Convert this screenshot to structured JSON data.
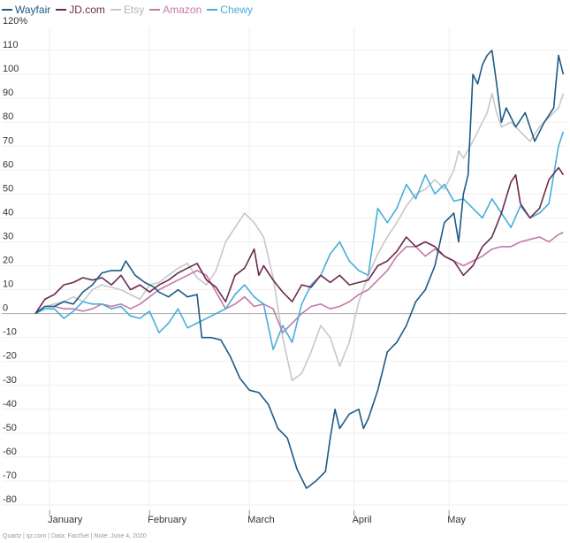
{
  "chart_data": {
    "type": "line",
    "title": "",
    "xlabel": "",
    "ylabel": "",
    "ylim": [
      -80,
      120
    ],
    "yticks": [
      -80,
      -70,
      -60,
      -50,
      -40,
      -30,
      -20,
      -10,
      0,
      10,
      20,
      30,
      40,
      50,
      60,
      70,
      80,
      90,
      100,
      110
    ],
    "top_tick_label": "120%",
    "xlim": [
      0,
      110
    ],
    "month_ticks": [
      {
        "label": "January",
        "day": 3
      },
      {
        "label": "February",
        "day": 24
      },
      {
        "label": "March",
        "day": 45
      },
      {
        "label": "April",
        "day": 67
      },
      {
        "label": "May",
        "day": 87
      }
    ],
    "series": [
      {
        "name": "Wayfair",
        "color": "#1d5a85",
        "values": [
          [
            0,
            0
          ],
          [
            2,
            3
          ],
          [
            4,
            3
          ],
          [
            6,
            5
          ],
          [
            8,
            4
          ],
          [
            10,
            9
          ],
          [
            12,
            12
          ],
          [
            14,
            17
          ],
          [
            16,
            18
          ],
          [
            18,
            18
          ],
          [
            19,
            22
          ],
          [
            21,
            16
          ],
          [
            23,
            13
          ],
          [
            25,
            11
          ],
          [
            26,
            9
          ],
          [
            28,
            7
          ],
          [
            30,
            10
          ],
          [
            32,
            7
          ],
          [
            34,
            8
          ],
          [
            35,
            -10
          ],
          [
            37,
            -10
          ],
          [
            39,
            -11
          ],
          [
            41,
            -18
          ],
          [
            43,
            -27
          ],
          [
            45,
            -32
          ],
          [
            47,
            -33
          ],
          [
            49,
            -38
          ],
          [
            51,
            -48
          ],
          [
            53,
            -52
          ],
          [
            55,
            -65
          ],
          [
            57,
            -73
          ],
          [
            59,
            -70
          ],
          [
            61,
            -66
          ],
          [
            62,
            -52
          ],
          [
            63,
            -40
          ],
          [
            64,
            -48
          ],
          [
            66,
            -42
          ],
          [
            68,
            -40
          ],
          [
            69,
            -48
          ],
          [
            70,
            -44
          ],
          [
            72,
            -32
          ],
          [
            74,
            -16
          ],
          [
            76,
            -12
          ],
          [
            78,
            -5
          ],
          [
            80,
            5
          ],
          [
            82,
            10
          ],
          [
            84,
            20
          ],
          [
            86,
            38
          ],
          [
            88,
            42
          ],
          [
            89,
            30
          ],
          [
            90,
            50
          ],
          [
            91,
            58
          ],
          [
            92,
            100
          ],
          [
            93,
            96
          ],
          [
            94,
            104
          ],
          [
            95,
            108
          ],
          [
            96,
            110
          ],
          [
            97,
            96
          ],
          [
            98,
            80
          ],
          [
            99,
            86
          ],
          [
            101,
            78
          ],
          [
            103,
            84
          ],
          [
            105,
            72
          ],
          [
            107,
            80
          ],
          [
            109,
            86
          ],
          [
            110,
            108
          ],
          [
            111,
            100
          ]
        ]
      },
      {
        "name": "JD.com",
        "color": "#6b2a4e",
        "values": [
          [
            0,
            0
          ],
          [
            2,
            6
          ],
          [
            4,
            8
          ],
          [
            6,
            12
          ],
          [
            8,
            13
          ],
          [
            10,
            15
          ],
          [
            12,
            14
          ],
          [
            14,
            15
          ],
          [
            16,
            12
          ],
          [
            18,
            16
          ],
          [
            20,
            10
          ],
          [
            22,
            12
          ],
          [
            24,
            9
          ],
          [
            26,
            12
          ],
          [
            28,
            14
          ],
          [
            30,
            17
          ],
          [
            32,
            19
          ],
          [
            34,
            21
          ],
          [
            36,
            14
          ],
          [
            38,
            11
          ],
          [
            40,
            5
          ],
          [
            42,
            16
          ],
          [
            44,
            19
          ],
          [
            46,
            27
          ],
          [
            47,
            16
          ],
          [
            48,
            20
          ],
          [
            50,
            14
          ],
          [
            52,
            9
          ],
          [
            54,
            5
          ],
          [
            56,
            12
          ],
          [
            58,
            11
          ],
          [
            60,
            16
          ],
          [
            62,
            13
          ],
          [
            64,
            16
          ],
          [
            66,
            12
          ],
          [
            68,
            13
          ],
          [
            70,
            14
          ],
          [
            72,
            20
          ],
          [
            74,
            22
          ],
          [
            76,
            26
          ],
          [
            78,
            32
          ],
          [
            80,
            28
          ],
          [
            82,
            30
          ],
          [
            84,
            28
          ],
          [
            86,
            24
          ],
          [
            88,
            22
          ],
          [
            90,
            16
          ],
          [
            92,
            20
          ],
          [
            94,
            28
          ],
          [
            96,
            32
          ],
          [
            98,
            42
          ],
          [
            100,
            55
          ],
          [
            101,
            58
          ],
          [
            102,
            46
          ],
          [
            104,
            40
          ],
          [
            106,
            44
          ],
          [
            108,
            56
          ],
          [
            110,
            61
          ],
          [
            111,
            58
          ]
        ]
      },
      {
        "name": "Etsy",
        "color": "#c8c8c8",
        "values": [
          [
            0,
            0
          ],
          [
            2,
            3
          ],
          [
            4,
            4
          ],
          [
            6,
            5
          ],
          [
            8,
            7
          ],
          [
            10,
            5
          ],
          [
            12,
            10
          ],
          [
            14,
            12
          ],
          [
            16,
            11
          ],
          [
            18,
            10
          ],
          [
            20,
            8
          ],
          [
            22,
            6
          ],
          [
            24,
            12
          ],
          [
            26,
            13
          ],
          [
            28,
            16
          ],
          [
            30,
            19
          ],
          [
            32,
            21
          ],
          [
            34,
            15
          ],
          [
            36,
            12
          ],
          [
            38,
            18
          ],
          [
            40,
            30
          ],
          [
            42,
            36
          ],
          [
            44,
            42
          ],
          [
            46,
            38
          ],
          [
            48,
            32
          ],
          [
            50,
            15
          ],
          [
            52,
            -10
          ],
          [
            54,
            -28
          ],
          [
            56,
            -25
          ],
          [
            58,
            -16
          ],
          [
            60,
            -5
          ],
          [
            62,
            -10
          ],
          [
            64,
            -22
          ],
          [
            66,
            -12
          ],
          [
            68,
            5
          ],
          [
            70,
            16
          ],
          [
            72,
            25
          ],
          [
            74,
            32
          ],
          [
            76,
            38
          ],
          [
            78,
            45
          ],
          [
            80,
            50
          ],
          [
            82,
            52
          ],
          [
            84,
            56
          ],
          [
            86,
            52
          ],
          [
            88,
            60
          ],
          [
            89,
            68
          ],
          [
            90,
            65
          ],
          [
            92,
            72
          ],
          [
            94,
            80
          ],
          [
            95,
            84
          ],
          [
            96,
            92
          ],
          [
            97,
            84
          ],
          [
            98,
            78
          ],
          [
            100,
            80
          ],
          [
            102,
            76
          ],
          [
            104,
            72
          ],
          [
            106,
            78
          ],
          [
            108,
            82
          ],
          [
            110,
            86
          ],
          [
            111,
            92
          ]
        ]
      },
      {
        "name": "Amazon",
        "color": "#c47aa8",
        "values": [
          [
            0,
            0
          ],
          [
            2,
            3
          ],
          [
            4,
            3
          ],
          [
            6,
            2
          ],
          [
            8,
            2
          ],
          [
            10,
            1
          ],
          [
            12,
            2
          ],
          [
            14,
            4
          ],
          [
            16,
            3
          ],
          [
            18,
            4
          ],
          [
            20,
            2
          ],
          [
            22,
            4
          ],
          [
            24,
            7
          ],
          [
            26,
            10
          ],
          [
            28,
            12
          ],
          [
            30,
            14
          ],
          [
            32,
            16
          ],
          [
            34,
            18
          ],
          [
            36,
            16
          ],
          [
            38,
            9
          ],
          [
            40,
            2
          ],
          [
            42,
            4
          ],
          [
            44,
            7
          ],
          [
            46,
            3
          ],
          [
            48,
            4
          ],
          [
            50,
            2
          ],
          [
            52,
            -8
          ],
          [
            54,
            -4
          ],
          [
            56,
            0
          ],
          [
            58,
            3
          ],
          [
            60,
            4
          ],
          [
            62,
            2
          ],
          [
            64,
            3
          ],
          [
            66,
            5
          ],
          [
            68,
            8
          ],
          [
            70,
            10
          ],
          [
            72,
            14
          ],
          [
            74,
            18
          ],
          [
            76,
            24
          ],
          [
            78,
            28
          ],
          [
            80,
            28
          ],
          [
            82,
            24
          ],
          [
            84,
            27
          ],
          [
            86,
            24
          ],
          [
            88,
            22
          ],
          [
            90,
            20
          ],
          [
            92,
            22
          ],
          [
            94,
            24
          ],
          [
            96,
            27
          ],
          [
            98,
            28
          ],
          [
            100,
            28
          ],
          [
            102,
            30
          ],
          [
            104,
            31
          ],
          [
            106,
            32
          ],
          [
            108,
            30
          ],
          [
            110,
            33
          ],
          [
            111,
            34
          ]
        ]
      },
      {
        "name": "Chewy",
        "color": "#46aedb",
        "values": [
          [
            0,
            0
          ],
          [
            2,
            2
          ],
          [
            4,
            2
          ],
          [
            6,
            -2
          ],
          [
            8,
            1
          ],
          [
            10,
            5
          ],
          [
            12,
            4
          ],
          [
            14,
            4
          ],
          [
            16,
            2
          ],
          [
            18,
            3
          ],
          [
            20,
            -1
          ],
          [
            22,
            -2
          ],
          [
            24,
            1
          ],
          [
            26,
            -8
          ],
          [
            28,
            -4
          ],
          [
            30,
            2
          ],
          [
            32,
            -6
          ],
          [
            34,
            -4
          ],
          [
            36,
            -2
          ],
          [
            38,
            0
          ],
          [
            40,
            2
          ],
          [
            42,
            8
          ],
          [
            44,
            12
          ],
          [
            46,
            7
          ],
          [
            48,
            4
          ],
          [
            50,
            -15
          ],
          [
            52,
            -5
          ],
          [
            54,
            -12
          ],
          [
            56,
            4
          ],
          [
            58,
            12
          ],
          [
            60,
            16
          ],
          [
            62,
            25
          ],
          [
            64,
            30
          ],
          [
            66,
            22
          ],
          [
            68,
            18
          ],
          [
            70,
            16
          ],
          [
            72,
            44
          ],
          [
            74,
            38
          ],
          [
            76,
            44
          ],
          [
            78,
            54
          ],
          [
            80,
            48
          ],
          [
            82,
            58
          ],
          [
            84,
            50
          ],
          [
            86,
            54
          ],
          [
            88,
            47
          ],
          [
            90,
            48
          ],
          [
            92,
            44
          ],
          [
            94,
            40
          ],
          [
            96,
            48
          ],
          [
            98,
            42
          ],
          [
            100,
            36
          ],
          [
            102,
            45
          ],
          [
            104,
            40
          ],
          [
            106,
            42
          ],
          [
            108,
            46
          ],
          [
            110,
            70
          ],
          [
            111,
            76
          ]
        ]
      }
    ]
  },
  "footer": "Quartz | qz.com | Data: FactSet | Note: June 4, 2020"
}
